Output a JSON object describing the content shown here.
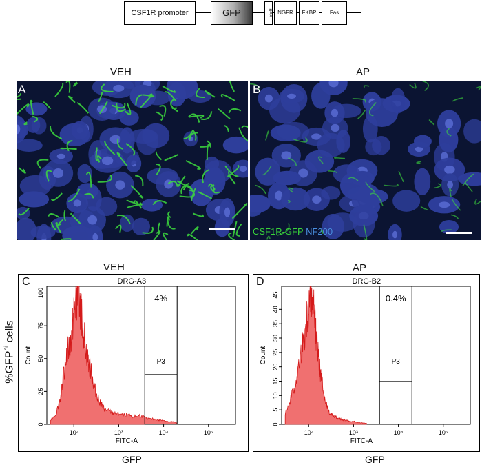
{
  "construct": {
    "promoter": "CSF1R promoter",
    "gfp": "GFP",
    "ires": "IRES",
    "ngfr": "NGFR",
    "fkbp": "FKBP",
    "fas": "Fas"
  },
  "micrographs": {
    "veh_title": "VEH",
    "ap_title": "AP",
    "label_a": "A",
    "label_b": "B",
    "legend_green": "CSF1R-GFP",
    "legend_blue": "NF200",
    "green_color": "#39d33a",
    "blue_color": "#4a8fe0"
  },
  "flow": {
    "y_axis_label_prefix": "%GFP",
    "y_axis_label_sup": "hi",
    "y_axis_label_suffix": " cells",
    "veh_title": "VEH",
    "ap_title": "AP",
    "xlabel_bottom": "GFP",
    "fill_color": "#f07070",
    "stroke_color": "#d41a1a"
  },
  "chart_data": [
    {
      "type": "area",
      "panel": "C",
      "title": "DRG-A3",
      "xlabel": "FITC-A",
      "ylabel": "Count",
      "x_scale": "log",
      "x_ticks": [
        "10²",
        "10³",
        "10⁴",
        "10⁵"
      ],
      "x_tick_values": [
        100,
        1000,
        10000,
        100000
      ],
      "y_ticks": [
        0,
        25,
        50,
        75,
        100
      ],
      "ylim": [
        0,
        105
      ],
      "gate_name": "P3",
      "gate_percent": "4%",
      "gate_range": [
        3800,
        20000
      ],
      "x": [
        30,
        40,
        50,
        60,
        70,
        80,
        90,
        100,
        110,
        120,
        130,
        140,
        150,
        170,
        190,
        210,
        240,
        270,
        300,
        350,
        400,
        450,
        500,
        600,
        700,
        800,
        1000,
        1300,
        1600,
        2000,
        2500,
        3000,
        3800,
        5000,
        6500,
        8000,
        10000,
        13000,
        16000,
        20000
      ],
      "values": [
        3,
        8,
        20,
        40,
        55,
        58,
        68,
        85,
        92,
        100,
        98,
        88,
        80,
        68,
        55,
        48,
        40,
        32,
        26,
        20,
        16,
        13,
        11,
        10,
        9,
        8,
        8,
        7,
        7,
        6,
        6,
        7,
        5,
        4,
        4,
        3,
        3,
        2,
        2,
        1
      ]
    },
    {
      "type": "area",
      "panel": "D",
      "title": "DRG-B2",
      "xlabel": "FITC-A",
      "ylabel": "Count",
      "x_scale": "log",
      "x_ticks": [
        "10²",
        "10³",
        "10⁴",
        "10⁵"
      ],
      "x_tick_values": [
        100,
        1000,
        10000,
        100000
      ],
      "y_ticks": [
        0,
        5,
        10,
        15,
        20,
        25,
        30,
        35,
        40,
        45
      ],
      "ylim": [
        0,
        48
      ],
      "gate_name": "P3",
      "gate_percent": "0.4%",
      "gate_range": [
        3800,
        20000
      ],
      "x": [
        30,
        40,
        50,
        60,
        70,
        80,
        90,
        100,
        110,
        120,
        130,
        140,
        150,
        170,
        190,
        210,
        240,
        270,
        300,
        350,
        400,
        450,
        500,
        600,
        700,
        800,
        1000,
        1300,
        1600,
        2000
      ],
      "values": [
        4,
        9,
        14,
        20,
        26,
        30,
        36,
        40,
        46,
        44,
        40,
        34,
        28,
        22,
        16,
        12,
        8,
        5,
        4,
        3,
        2.5,
        2,
        2,
        1.5,
        1.5,
        1,
        1,
        0.5,
        0.5,
        0.3
      ]
    }
  ]
}
